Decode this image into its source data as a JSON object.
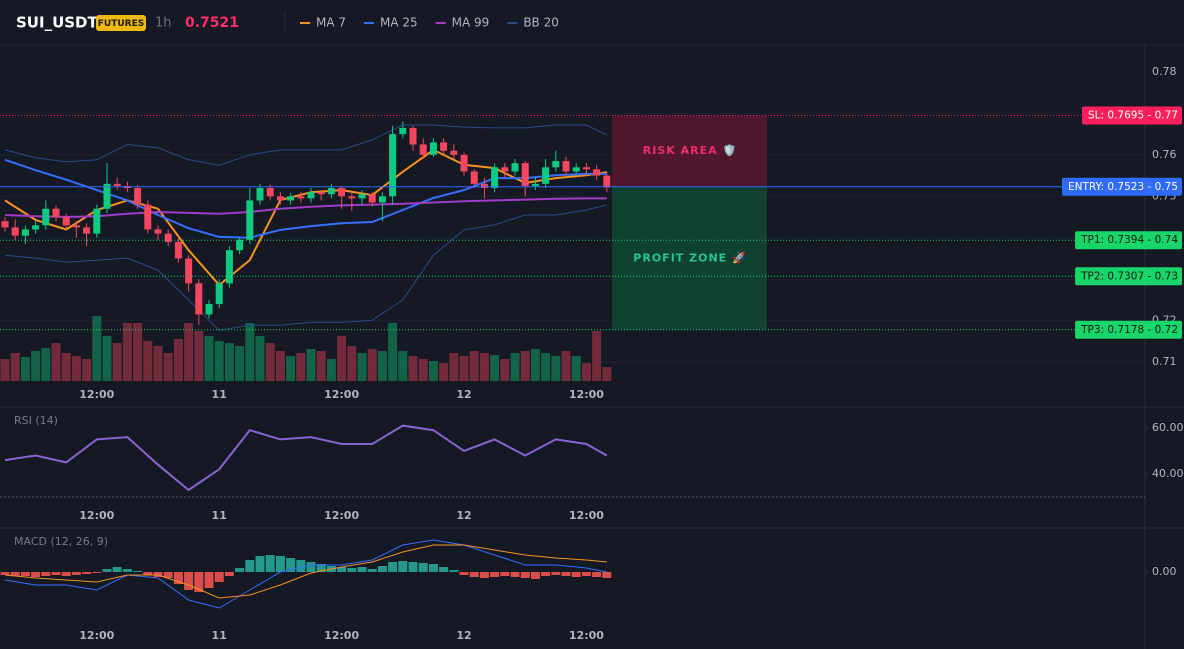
{
  "chart_data": [
    {
      "type": "candlestick",
      "title": "SUI_USDT",
      "badge": "FUTURES",
      "interval": "1h",
      "last_price": 0.7521,
      "xlim": [
        -0.49,
        111.76
      ],
      "xticks": [
        {
          "value": 9,
          "label": "12:00"
        },
        {
          "value": 21,
          "label": "11"
        },
        {
          "value": 33,
          "label": "12:00"
        },
        {
          "value": 45,
          "label": "12"
        },
        {
          "value": 57,
          "label": "12:00"
        }
      ],
      "ylim": [
        0.7052,
        0.7865
      ],
      "yticks": [
        0.71,
        0.72,
        0.73,
        0.74,
        0.75,
        0.76,
        0.77,
        0.78
      ],
      "grid": true,
      "up_color": "#0ecb81",
      "down_color": "#f6465d",
      "candles": {
        "open": [
          0.744,
          0.7425,
          0.7405,
          0.742,
          0.743,
          0.747,
          0.745,
          0.743,
          0.7425,
          0.741,
          0.747,
          0.753,
          0.7525,
          0.752,
          0.748,
          0.742,
          0.741,
          0.739,
          0.735,
          0.729,
          0.7215,
          0.724,
          0.729,
          0.737,
          0.7395,
          0.749,
          0.752,
          0.75,
          0.749,
          0.75,
          0.7495,
          0.751,
          0.7505,
          0.752,
          0.75,
          0.7495,
          0.7505,
          0.7485,
          0.75,
          0.765,
          0.7665,
          0.7625,
          0.76,
          0.763,
          0.761,
          0.76,
          0.756,
          0.753,
          0.752,
          0.757,
          0.756,
          0.758,
          0.7525,
          0.753,
          0.757,
          0.7585,
          0.756,
          0.757,
          0.7565,
          0.755
        ],
        "high": [
          0.745,
          0.7445,
          0.743,
          0.744,
          0.749,
          0.7478,
          0.7458,
          0.744,
          0.7435,
          0.748,
          0.758,
          0.7545,
          0.7535,
          0.7528,
          0.749,
          0.743,
          0.742,
          0.7398,
          0.7358,
          0.73,
          0.725,
          0.73,
          0.738,
          0.74,
          0.752,
          0.753,
          0.7528,
          0.751,
          0.7508,
          0.751,
          0.752,
          0.7515,
          0.753,
          0.7525,
          0.751,
          0.7515,
          0.751,
          0.751,
          0.767,
          0.768,
          0.767,
          0.764,
          0.764,
          0.764,
          0.7625,
          0.7605,
          0.7565,
          0.7545,
          0.758,
          0.758,
          0.759,
          0.7585,
          0.7545,
          0.759,
          0.761,
          0.7595,
          0.758,
          0.758,
          0.7575,
          0.756
        ],
        "low": [
          0.7415,
          0.7395,
          0.7385,
          0.741,
          0.742,
          0.744,
          0.742,
          0.74,
          0.738,
          0.74,
          0.746,
          0.7515,
          0.751,
          0.747,
          0.741,
          0.7395,
          0.738,
          0.734,
          0.727,
          0.719,
          0.7205,
          0.723,
          0.728,
          0.736,
          0.7385,
          0.748,
          0.749,
          0.748,
          0.748,
          0.7485,
          0.7485,
          0.749,
          0.7495,
          0.747,
          0.7465,
          0.748,
          0.7475,
          0.744,
          0.748,
          0.764,
          0.761,
          0.759,
          0.7595,
          0.76,
          0.759,
          0.755,
          0.752,
          0.7495,
          0.751,
          0.7545,
          0.755,
          0.75,
          0.7515,
          0.752,
          0.756,
          0.755,
          0.7555,
          0.755,
          0.754,
          0.751
        ],
        "close": [
          0.7425,
          0.7405,
          0.742,
          0.743,
          0.747,
          0.745,
          0.743,
          0.7425,
          0.741,
          0.747,
          0.753,
          0.7525,
          0.752,
          0.748,
          0.742,
          0.741,
          0.739,
          0.735,
          0.729,
          0.7215,
          0.724,
          0.729,
          0.737,
          0.7395,
          0.749,
          0.752,
          0.75,
          0.749,
          0.75,
          0.7495,
          0.751,
          0.7505,
          0.752,
          0.75,
          0.7495,
          0.7505,
          0.7485,
          0.75,
          0.765,
          0.7665,
          0.7625,
          0.76,
          0.763,
          0.761,
          0.76,
          0.756,
          0.753,
          0.752,
          0.757,
          0.756,
          0.758,
          0.7525,
          0.753,
          0.757,
          0.7585,
          0.756,
          0.757,
          0.7565,
          0.755,
          0.7521
        ]
      },
      "volume": [
        22,
        28,
        24,
        30,
        33,
        38,
        28,
        25,
        22,
        65,
        45,
        38,
        58,
        58,
        40,
        35,
        28,
        42,
        58,
        50,
        45,
        40,
        38,
        35,
        58,
        45,
        38,
        30,
        25,
        28,
        32,
        30,
        22,
        45,
        35,
        28,
        32,
        30,
        58,
        30,
        25,
        22,
        20,
        18,
        28,
        25,
        30,
        28,
        26,
        22,
        28,
        30,
        32,
        28,
        25,
        30,
        25,
        18,
        50,
        14
      ],
      "series": [
        {
          "name": "MA 7",
          "color": "#f7931a",
          "x": [
            0,
            3,
            6,
            9,
            12,
            15,
            18,
            21,
            24,
            27,
            30,
            33,
            36,
            39,
            42,
            45,
            48,
            51,
            54,
            57,
            59
          ],
          "values": [
            0.749,
            0.7443,
            0.742,
            0.7467,
            0.749,
            0.747,
            0.737,
            0.7286,
            0.7346,
            0.7491,
            0.751,
            0.7515,
            0.7503,
            0.7559,
            0.7612,
            0.7576,
            0.7568,
            0.7532,
            0.7544,
            0.7551,
            0.7558
          ]
        },
        {
          "name": "MA 25",
          "color": "#3370ff",
          "x": [
            0,
            3,
            6,
            9,
            12,
            15,
            18,
            21,
            24,
            27,
            30,
            33,
            36,
            39,
            42,
            45,
            48,
            51,
            54,
            57,
            59
          ],
          "values": [
            0.7588,
            0.7563,
            0.754,
            0.7515,
            0.749,
            0.7455,
            0.7423,
            0.7402,
            0.74,
            0.7419,
            0.7428,
            0.7435,
            0.7438,
            0.7467,
            0.7496,
            0.7515,
            0.7544,
            0.7544,
            0.7551,
            0.7554,
            0.7554
          ]
        },
        {
          "name": "MA 99",
          "color": "#a03cc8",
          "x": [
            0,
            3,
            6,
            9,
            12,
            15,
            18,
            21,
            24,
            27,
            30,
            33,
            36,
            39,
            42,
            45,
            48,
            51,
            54,
            57,
            59
          ],
          "values": [
            0.7455,
            0.7452,
            0.745,
            0.7452,
            0.7458,
            0.7462,
            0.746,
            0.7458,
            0.7462,
            0.747,
            0.7475,
            0.7478,
            0.748,
            0.7482,
            0.7485,
            0.7488,
            0.749,
            0.7492,
            0.7494,
            0.7495,
            0.7495
          ]
        },
        {
          "name": "BB 20",
          "color": "#2a4a8c",
          "x": [
            0,
            3,
            6,
            9,
            12,
            15,
            18,
            21,
            24,
            27,
            30,
            33,
            36,
            39,
            42,
            45,
            48,
            51,
            54,
            57,
            59
          ],
          "upper": [
            0.7612,
            0.7593,
            0.7583,
            0.7588,
            0.7625,
            0.7617,
            0.7588,
            0.7575,
            0.76,
            0.7612,
            0.7612,
            0.7612,
            0.7636,
            0.7672,
            0.7672,
            0.7667,
            0.7665,
            0.7665,
            0.7672,
            0.7672,
            0.7648
          ],
          "lower": [
            0.7358,
            0.7351,
            0.7341,
            0.7346,
            0.7351,
            0.7322,
            0.725,
            0.7177,
            0.7189,
            0.7189,
            0.7196,
            0.7196,
            0.7201,
            0.725,
            0.7358,
            0.7419,
            0.7431,
            0.7455,
            0.7455,
            0.7467,
            0.7479
          ]
        }
      ],
      "levels": [
        {
          "value": 0.7695,
          "label": "SL: 0.7695 - 0.77",
          "color": "#ff1f5a",
          "line_style": "dotted"
        },
        {
          "value": 0.7523,
          "label": "ENTRY: 0.7523 - 0.75",
          "color": "#2f6bff",
          "line_style": "solid"
        },
        {
          "value": 0.7394,
          "label": "TP1: 0.7394 - 0.74",
          "color": "#19d66b",
          "line_style": "dotted"
        },
        {
          "value": 0.7307,
          "label": "TP2: 0.7307 - 0.73",
          "color": "#19d66b",
          "line_style": "dotted"
        },
        {
          "value": 0.7178,
          "label": "TP3: 0.7178 - 0.72",
          "color": "#19d66b",
          "line_style": "dotted"
        }
      ],
      "zones": [
        {
          "label": "RISK AREA 🛡️",
          "color": "#5a1733",
          "text_color": "#e8306a"
        },
        {
          "label": "PROFIT ZONE 🚀",
          "color": "#0e4a36",
          "text_color": "#22c98a"
        }
      ]
    },
    {
      "type": "line",
      "title": "RSI (14)",
      "color": "#8a63d2",
      "x": [
        0,
        3,
        6,
        9,
        12,
        15,
        18,
        21,
        24,
        27,
        30,
        33,
        36,
        39,
        42,
        45,
        48,
        51,
        54,
        57,
        59
      ],
      "values": [
        46,
        48,
        45,
        55,
        56,
        44,
        33,
        42,
        59,
        55,
        56,
        53,
        53,
        61,
        59,
        50,
        55,
        48,
        55,
        53,
        48
      ],
      "ylim": [
        26.5,
        69.1
      ],
      "yticks": [
        {
          "value": 40,
          "label": "40.00"
        },
        {
          "value": 60,
          "label": "60.00"
        }
      ],
      "guide_lines": [
        30
      ]
    },
    {
      "type": "macd",
      "title": "MACD (12, 26, 9)",
      "ylim": [
        -0.0053,
        0.0044
      ],
      "yticks": [
        {
          "value": 0,
          "label": "0.00"
        }
      ],
      "x": [
        0,
        3,
        6,
        9,
        12,
        15,
        18,
        21,
        24,
        27,
        30,
        33,
        36,
        39,
        42,
        45,
        48,
        51,
        54,
        57,
        59
      ],
      "macd_line": {
        "color": "#3370ff",
        "values": [
          -0.0008,
          -0.0013,
          -0.0013,
          -0.0018,
          -0.0003,
          -0.0006,
          -0.0028,
          -0.0036,
          -0.0018,
          0,
          0.0007,
          0.0007,
          0.0012,
          0.0027,
          0.0032,
          0.0027,
          0.0017,
          0.0007,
          0.0007,
          0.0004,
          0
        ]
      },
      "signal_line": {
        "color": "#f7931a",
        "values": [
          -0.0003,
          -0.0006,
          -0.0008,
          -0.001,
          -0.0003,
          -0.0003,
          -0.0013,
          -0.0026,
          -0.0023,
          -0.0013,
          -0.0001,
          0.0005,
          0.001,
          0.002,
          0.0027,
          0.0027,
          0.0022,
          0.0017,
          0.0014,
          0.0012,
          0.001
        ]
      },
      "histogram": [
        -0.0003,
        -0.0004,
        -0.0004,
        -0.0005,
        -0.0004,
        -0.0003,
        -0.0004,
        -0.0003,
        -0.0002,
        -0.0001,
        0.0003,
        0.0005,
        0.0003,
        0.0001,
        -0.0003,
        -0.0005,
        -0.0006,
        -0.0012,
        -0.0018,
        -0.002,
        -0.0016,
        -0.001,
        -0.0004,
        0.0004,
        0.0012,
        0.0016,
        0.0017,
        0.0016,
        0.0014,
        0.0012,
        0.001,
        0.0008,
        0.0006,
        0.0005,
        0.0004,
        0.0005,
        0.0003,
        0.0006,
        0.001,
        0.0011,
        0.001,
        0.0009,
        0.0008,
        0.0005,
        0.0002,
        -0.0003,
        -0.0005,
        -0.0006,
        -0.0005,
        -0.0004,
        -0.0005,
        -0.0006,
        -0.0007,
        -0.0004,
        -0.0003,
        -0.0004,
        -0.0005,
        -0.0004,
        -0.0005,
        -0.0006
      ],
      "up_color": "#26a69a",
      "down_color": "#ef5350"
    }
  ]
}
